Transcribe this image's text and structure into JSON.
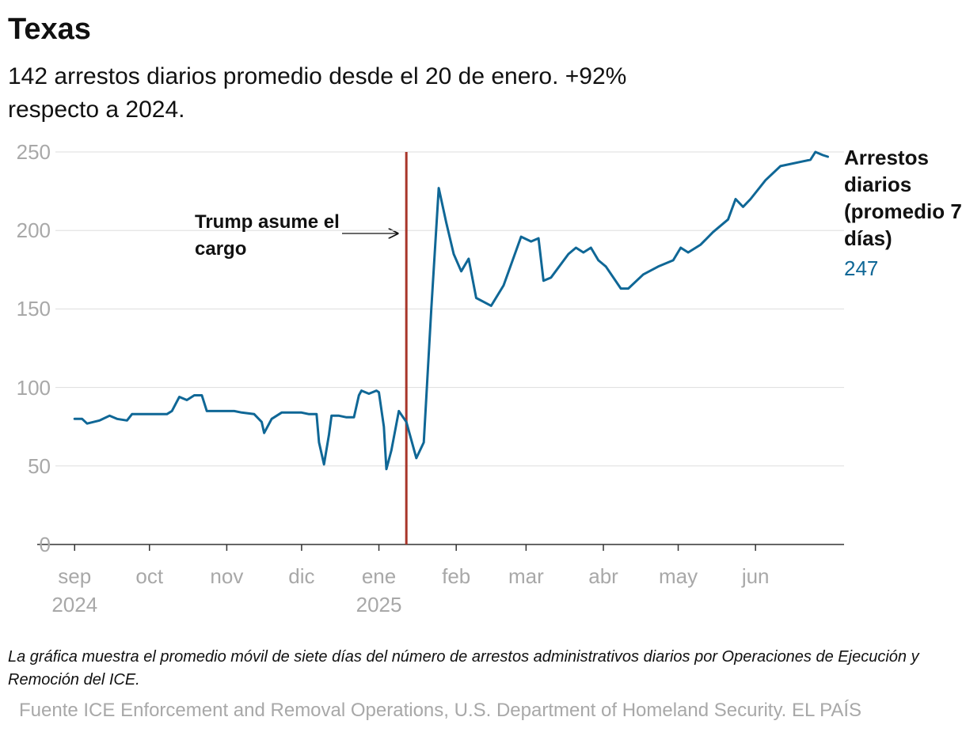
{
  "chart_data": {
    "type": "line",
    "title": "Texas",
    "subtitle": "142 arrestos diarios promedio desde el 20 de enero. +92% respecto a 2024.",
    "note": "La gráfica muestra el promedio móvil de siete días del número de arrestos administrativos diarios por Operaciones de Ejecución y Remoción del ICE.",
    "source": "Fuente ICE Enforcement and Removal Operations, U.S. Department of Homeland Security. EL PAÍS",
    "x": [
      0,
      3,
      5,
      10,
      14,
      17,
      21,
      23,
      37,
      39,
      42,
      45,
      48,
      51,
      53,
      64,
      67,
      72,
      75,
      76,
      79,
      83,
      91,
      94,
      97,
      98,
      100,
      102,
      103,
      106,
      109,
      112,
      114,
      115,
      118,
      121,
      122,
      124,
      125,
      127,
      130,
      133,
      137,
      140,
      143,
      146,
      149,
      152,
      155,
      158,
      161,
      167,
      172,
      179,
      183,
      186,
      188,
      191,
      198,
      201,
      204,
      207,
      210,
      213,
      219,
      222,
      228,
      234,
      240,
      243,
      246,
      251,
      256,
      262,
      265,
      268,
      271,
      277,
      283,
      295,
      297,
      300,
      302
    ],
    "series": [
      {
        "name": "Arrestos diarios (promedio 7 días)",
        "color": "#0f6796",
        "values": [
          80,
          80,
          77,
          79,
          82,
          80,
          79,
          83,
          83,
          85,
          94,
          92,
          95,
          95,
          85,
          85,
          84,
          83,
          78,
          71,
          80,
          84,
          84,
          83,
          83,
          65,
          51,
          70,
          82,
          82,
          81,
          81,
          95,
          98,
          96,
          98,
          97,
          75,
          48,
          60,
          85,
          78,
          55,
          65,
          150,
          227,
          205,
          185,
          174,
          182,
          157,
          152,
          165,
          196,
          193,
          195,
          168,
          170,
          185,
          189,
          186,
          189,
          181,
          177,
          163,
          163,
          172,
          177,
          181,
          189,
          186,
          191,
          199,
          207,
          220,
          215,
          220,
          232,
          241,
          245,
          250,
          248,
          247
        ]
      }
    ],
    "xlim": [
      -15,
      308.5
    ],
    "xticks": [
      {
        "value": 0,
        "label": "sep 2024"
      },
      {
        "value": 30,
        "label": "oct"
      },
      {
        "value": 61,
        "label": "nov"
      },
      {
        "value": 91,
        "label": "dic"
      },
      {
        "value": 122,
        "label": "ene 2025"
      },
      {
        "value": 153,
        "label": "feb"
      },
      {
        "value": 181,
        "label": "mar"
      },
      {
        "value": 212,
        "label": "abr"
      },
      {
        "value": 242,
        "label": "may"
      },
      {
        "value": 273,
        "label": "jun"
      }
    ],
    "ylim": [
      0,
      250
    ],
    "yticks": [
      0,
      50,
      100,
      150,
      200,
      250
    ],
    "grid": true,
    "event": {
      "x": 133,
      "label": "Trump asume el cargo",
      "color": "#a8362a"
    }
  }
}
